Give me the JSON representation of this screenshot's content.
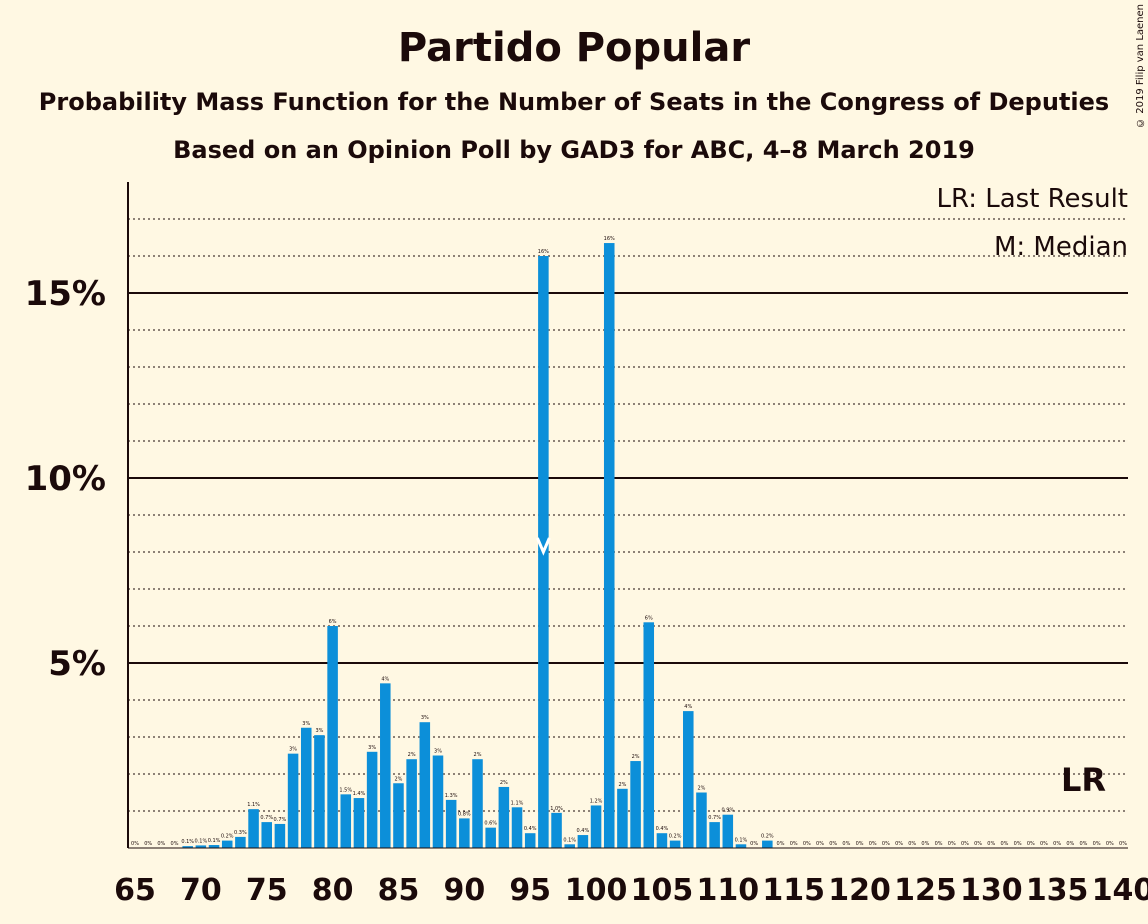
{
  "chart_data": {
    "type": "bar",
    "title": "Partido Popular",
    "subtitle": "Probability Mass Function for the Number of Seats in the Congress of Deputies",
    "source": "Based on an Opinion Poll by GAD3 for ABC, 4–8 March 2019",
    "copyright": "© 2019 Filip van Laenen",
    "legend_lr": "LR: Last Result",
    "legend_median": "M: Median",
    "median_marker": "M",
    "last_result_marker": "LR",
    "median_seat": 96,
    "last_result_seat": 137,
    "bar_color": "#0c8fd9",
    "xlim": [
      65,
      140
    ],
    "ylim": [
      0,
      18
    ],
    "y_ticks": [
      {
        "value": 5,
        "label": "5%"
      },
      {
        "value": 10,
        "label": "10%"
      },
      {
        "value": 15,
        "label": "15%"
      }
    ],
    "x_ticks": [
      65,
      70,
      75,
      80,
      85,
      90,
      95,
      100,
      105,
      110,
      115,
      120,
      125,
      130,
      135,
      140
    ],
    "bars": [
      {
        "seat": 65,
        "value": 0.0,
        "label": "0%"
      },
      {
        "seat": 66,
        "value": 0.0,
        "label": "0%"
      },
      {
        "seat": 67,
        "value": 0.0,
        "label": "0%"
      },
      {
        "seat": 68,
        "value": 0.0,
        "label": "0%"
      },
      {
        "seat": 69,
        "value": 0.05,
        "label": "0.1%"
      },
      {
        "seat": 70,
        "value": 0.07,
        "label": "0.1%"
      },
      {
        "seat": 71,
        "value": 0.08,
        "label": "0.1%"
      },
      {
        "seat": 72,
        "value": 0.2,
        "label": "0.2%"
      },
      {
        "seat": 73,
        "value": 0.3,
        "label": "0.3%"
      },
      {
        "seat": 74,
        "value": 1.05,
        "label": "1.1%"
      },
      {
        "seat": 75,
        "value": 0.7,
        "label": "0.7%"
      },
      {
        "seat": 76,
        "value": 0.65,
        "label": "0.7%"
      },
      {
        "seat": 77,
        "value": 2.55,
        "label": "3%"
      },
      {
        "seat": 78,
        "value": 3.25,
        "label": "3%"
      },
      {
        "seat": 79,
        "value": 3.05,
        "label": "3%"
      },
      {
        "seat": 80,
        "value": 6.0,
        "label": "6%"
      },
      {
        "seat": 81,
        "value": 1.45,
        "label": "1.5%"
      },
      {
        "seat": 82,
        "value": 1.35,
        "label": "1.4%"
      },
      {
        "seat": 83,
        "value": 2.6,
        "label": "3%"
      },
      {
        "seat": 84,
        "value": 4.45,
        "label": "4%"
      },
      {
        "seat": 85,
        "value": 1.75,
        "label": "2%"
      },
      {
        "seat": 86,
        "value": 2.4,
        "label": "2%"
      },
      {
        "seat": 87,
        "value": 3.4,
        "label": "3%"
      },
      {
        "seat": 88,
        "value": 2.5,
        "label": "3%"
      },
      {
        "seat": 89,
        "value": 1.3,
        "label": "1.3%"
      },
      {
        "seat": 90,
        "value": 0.8,
        "label": "0.8%"
      },
      {
        "seat": 91,
        "value": 2.4,
        "label": "2%"
      },
      {
        "seat": 92,
        "value": 0.55,
        "label": "0.6%"
      },
      {
        "seat": 93,
        "value": 1.65,
        "label": "2%"
      },
      {
        "seat": 94,
        "value": 1.1,
        "label": "1.1%"
      },
      {
        "seat": 95,
        "value": 0.4,
        "label": "0.4%"
      },
      {
        "seat": 96,
        "value": 16.0,
        "label": "16%"
      },
      {
        "seat": 97,
        "value": 0.95,
        "label": "1.0%"
      },
      {
        "seat": 98,
        "value": 0.1,
        "label": "0.1%"
      },
      {
        "seat": 99,
        "value": 0.35,
        "label": "0.4%"
      },
      {
        "seat": 100,
        "value": 1.15,
        "label": "1.2%"
      },
      {
        "seat": 101,
        "value": 16.35,
        "label": "16%"
      },
      {
        "seat": 102,
        "value": 1.6,
        "label": "2%"
      },
      {
        "seat": 103,
        "value": 2.35,
        "label": "2%"
      },
      {
        "seat": 104,
        "value": 6.1,
        "label": "6%"
      },
      {
        "seat": 105,
        "value": 0.4,
        "label": "0.4%"
      },
      {
        "seat": 106,
        "value": 0.2,
        "label": "0.2%"
      },
      {
        "seat": 107,
        "value": 3.7,
        "label": "4%"
      },
      {
        "seat": 108,
        "value": 1.5,
        "label": "2%"
      },
      {
        "seat": 109,
        "value": 0.7,
        "label": "0.7%"
      },
      {
        "seat": 110,
        "value": 0.9,
        "label": "0.9%"
      },
      {
        "seat": 111,
        "value": 0.1,
        "label": "0.1%"
      },
      {
        "seat": 112,
        "value": 0.0,
        "label": "0%"
      },
      {
        "seat": 113,
        "value": 0.2,
        "label": "0.2%"
      },
      {
        "seat": 114,
        "value": 0.0,
        "label": "0%"
      },
      {
        "seat": 115,
        "value": 0.0,
        "label": "0%"
      },
      {
        "seat": 116,
        "value": 0.0,
        "label": "0%"
      },
      {
        "seat": 117,
        "value": 0.0,
        "label": "0%"
      },
      {
        "seat": 118,
        "value": 0.0,
        "label": "0%"
      },
      {
        "seat": 119,
        "value": 0.0,
        "label": "0%"
      },
      {
        "seat": 120,
        "value": 0.0,
        "label": "0%"
      },
      {
        "seat": 121,
        "value": 0.0,
        "label": "0%"
      },
      {
        "seat": 122,
        "value": 0.0,
        "label": "0%"
      },
      {
        "seat": 123,
        "value": 0.0,
        "label": "0%"
      },
      {
        "seat": 124,
        "value": 0.0,
        "label": "0%"
      },
      {
        "seat": 125,
        "value": 0.0,
        "label": "0%"
      },
      {
        "seat": 126,
        "value": 0.0,
        "label": "0%"
      },
      {
        "seat": 127,
        "value": 0.0,
        "label": "0%"
      },
      {
        "seat": 128,
        "value": 0.0,
        "label": "0%"
      },
      {
        "seat": 129,
        "value": 0.0,
        "label": "0%"
      },
      {
        "seat": 130,
        "value": 0.0,
        "label": "0%"
      },
      {
        "seat": 131,
        "value": 0.0,
        "label": "0%"
      },
      {
        "seat": 132,
        "value": 0.0,
        "label": "0%"
      },
      {
        "seat": 133,
        "value": 0.0,
        "label": "0%"
      },
      {
        "seat": 134,
        "value": 0.0,
        "label": "0%"
      },
      {
        "seat": 135,
        "value": 0.0,
        "label": "0%"
      },
      {
        "seat": 136,
        "value": 0.0,
        "label": "0%"
      },
      {
        "seat": 137,
        "value": 0.0,
        "label": "0%"
      },
      {
        "seat": 138,
        "value": 0.0,
        "label": "0%"
      },
      {
        "seat": 139,
        "value": 0.0,
        "label": "0%"
      },
      {
        "seat": 140,
        "value": 0.0,
        "label": "0%"
      }
    ]
  }
}
